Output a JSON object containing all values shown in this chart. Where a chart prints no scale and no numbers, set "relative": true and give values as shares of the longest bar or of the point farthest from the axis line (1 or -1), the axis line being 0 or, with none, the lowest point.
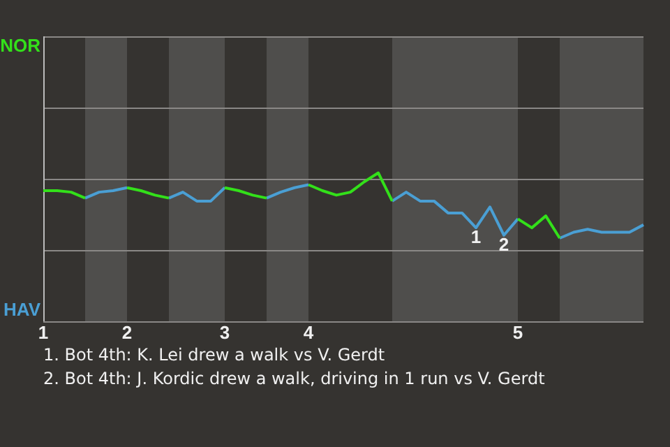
{
  "chart_data": {
    "type": "line",
    "relative": true,
    "categories": [
      "1",
      null,
      null,
      null,
      null,
      null,
      "2",
      null,
      null,
      null,
      null,
      null,
      null,
      "3",
      null,
      null,
      null,
      null,
      null,
      "4",
      null,
      null,
      null,
      null,
      null,
      null,
      null,
      null,
      null,
      null,
      null,
      null,
      null,
      null,
      "5",
      null,
      null,
      null,
      null,
      null,
      null,
      null,
      null,
      null
    ],
    "series": [
      {
        "name": "NOR",
        "color": "#33e01a",
        "values": [
          0.88,
          0.88,
          0.87,
          0.83,
          null,
          null,
          0.9,
          0.88,
          0.85,
          0.83,
          null,
          null,
          null,
          0.9,
          0.88,
          0.85,
          0.83,
          null,
          null,
          0.92,
          0.88,
          0.85,
          0.87,
          0.94,
          1,
          0.81,
          null,
          null,
          null,
          null,
          null,
          null,
          null,
          null,
          0.69,
          0.63,
          0.71,
          0.56,
          null,
          null,
          null,
          null,
          null,
          null
        ]
      },
      {
        "name": "HAV",
        "color": "#4a9fd4",
        "values": [
          null,
          null,
          null,
          0.83,
          0.87,
          0.88,
          0.9,
          null,
          null,
          0.83,
          0.87,
          0.81,
          0.81,
          0.9,
          null,
          null,
          0.83,
          0.87,
          0.9,
          0.92,
          null,
          null,
          null,
          null,
          null,
          0.81,
          0.87,
          0.81,
          0.81,
          0.73,
          0.73,
          0.63,
          0.77,
          0.58,
          0.69,
          null,
          null,
          0.56,
          0.6,
          0.62,
          0.6,
          0.6,
          0.6,
          0.65
        ]
      }
    ],
    "marker": "none",
    "ref_lines": [
      {
        "axis": "y",
        "value": 0.48,
        "color": "#8a8886"
      },
      {
        "axis": "y",
        "value": 0.96,
        "color": "#8a8886"
      },
      {
        "axis": "y",
        "value": 1.44,
        "color": "#8a8886"
      }
    ],
    "annotations": [
      {
        "text": "1",
        "y": 0.63
      },
      {
        "text": "2",
        "y": 0.58
      },
      "1. Bot 4th: K. Lei drew a walk vs V. Gerdt",
      "2. Bot 4th: J. Kordic drew a walk, driving in 1 run vs V. Gerdt"
    ]
  }
}
